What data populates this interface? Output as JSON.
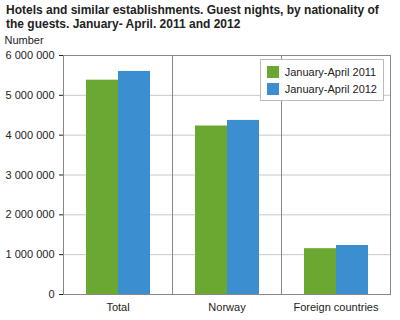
{
  "chart_data": {
    "type": "bar",
    "title": "Hotels and similar establishments. Guest nights, by nationality of the guests. January- April. 2011 and 2012",
    "ylabel": "Number",
    "categories": [
      "Total",
      "Norway",
      "Foreign countries"
    ],
    "series": [
      {
        "name": "January-April 2011",
        "color": "#6aa832",
        "values": [
          5380000,
          4230000,
          1150000
        ]
      },
      {
        "name": "January-April 2012",
        "color": "#3b8fd0",
        "values": [
          5600000,
          4370000,
          1230000
        ]
      }
    ],
    "ylim": [
      0,
      6000000
    ],
    "yticks": [
      0,
      {
        "value": 1000000,
        "label": "1 000 000"
      },
      {
        "value": 2000000,
        "label": "2 000 000"
      },
      {
        "value": 3000000,
        "label": "3 000 000"
      },
      {
        "value": 4000000,
        "label": "4 000 000"
      },
      {
        "value": 5000000,
        "label": "5 000 000"
      },
      {
        "value": 6000000,
        "label": "6 000 000"
      }
    ],
    "grid": true,
    "legend": "top-right"
  }
}
